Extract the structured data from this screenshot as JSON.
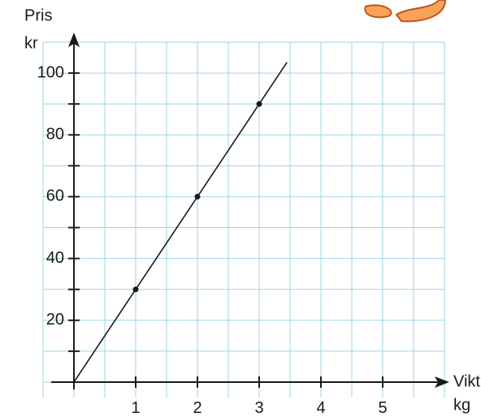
{
  "chart_data": {
    "type": "line",
    "y_label": "Pris",
    "y_unit": "kr",
    "x_label": "Vikt",
    "x_unit": "kg",
    "xlim": [
      -0.5,
      6
    ],
    "ylim": [
      -5,
      110
    ],
    "xticks": [
      1,
      2,
      3,
      4,
      5
    ],
    "yticks": [
      20,
      40,
      60,
      80,
      100
    ],
    "yminor_ticks": [
      10,
      30,
      50,
      70,
      90
    ],
    "xgrid": [
      -0.5,
      0,
      0.5,
      1,
      1.5,
      2,
      2.5,
      3,
      3.5,
      4,
      4.5,
      5,
      5.5,
      6
    ],
    "ygrid": [
      0,
      10,
      20,
      30,
      40,
      50,
      60,
      70,
      80,
      90,
      100,
      110
    ],
    "grid_color": "#9fd3e6",
    "series": [
      {
        "color": "#1a1a1a",
        "x": [
          0,
          3.45
        ],
        "values": [
          0,
          103.5
        ]
      },
      {
        "color": "#1a1a1a",
        "x": [
          1,
          2,
          3
        ],
        "values": [
          30,
          60,
          90
        ],
        "markers_only": true
      }
    ]
  }
}
